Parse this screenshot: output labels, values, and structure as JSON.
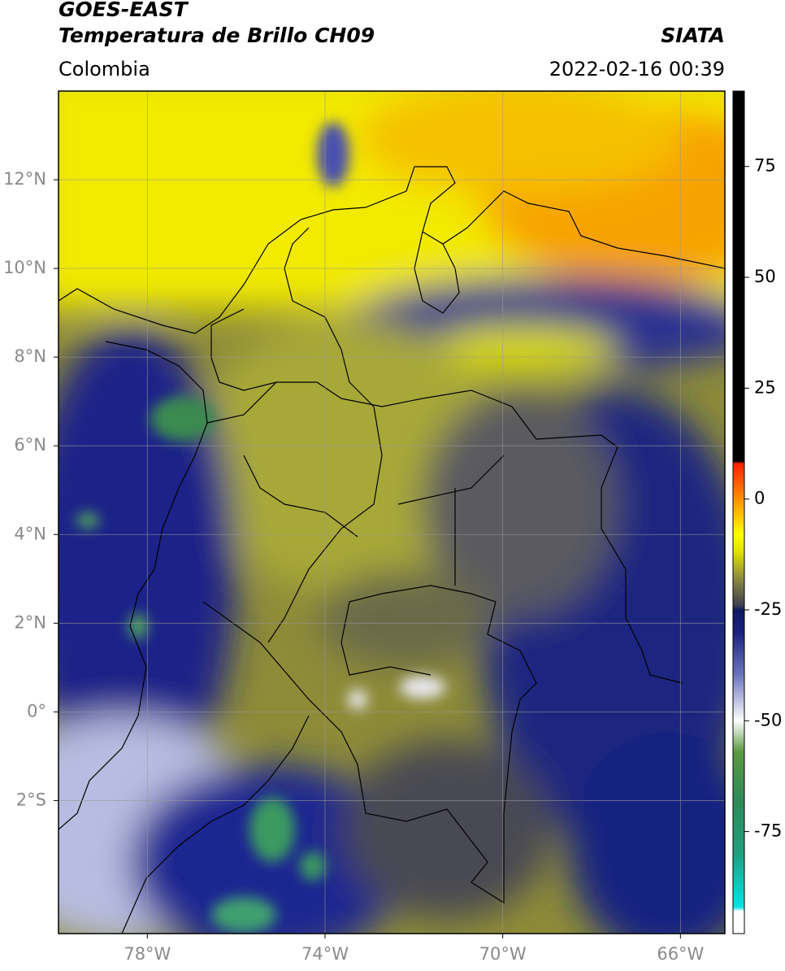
{
  "header": {
    "title": "GOES-EAST",
    "subtitle": "Temperatura de Brillo CH09",
    "source": "SIATA",
    "region": "Colombia",
    "datetime": "2022-02-16 00:39"
  },
  "map": {
    "xlim": [
      -80,
      -65
    ],
    "ylim": [
      -5,
      14
    ],
    "xticks": [
      {
        "value": -78,
        "label": "78°W"
      },
      {
        "value": -74,
        "label": "74°W"
      },
      {
        "value": -70,
        "label": "70°W"
      },
      {
        "value": -66,
        "label": "66°W"
      }
    ],
    "yticks": [
      {
        "value": -2,
        "label": "2°S"
      },
      {
        "value": 0,
        "label": "0°"
      },
      {
        "value": 2,
        "label": "2°N"
      },
      {
        "value": 4,
        "label": "4°N"
      },
      {
        "value": 6,
        "label": "6°N"
      },
      {
        "value": 8,
        "label": "8°N"
      },
      {
        "value": 10,
        "label": "10°N"
      },
      {
        "value": 12,
        "label": "12°N"
      }
    ],
    "grid": true
  },
  "colorbar": {
    "lim": [
      -98,
      92
    ],
    "ticks": [
      -75,
      -50,
      -25,
      0,
      25,
      50,
      75
    ],
    "stops": [
      {
        "value": -98,
        "color": "#ffffff"
      },
      {
        "value": -93,
        "color": "#ffffff"
      },
      {
        "value": -92,
        "color": "#00e5e5"
      },
      {
        "value": -80,
        "color": "#20a080"
      },
      {
        "value": -68,
        "color": "#2e8b57"
      },
      {
        "value": -57,
        "color": "#5a9a40"
      },
      {
        "value": -50,
        "color": "#ffffff"
      },
      {
        "value": -40,
        "color": "#7078c0"
      },
      {
        "value": -30,
        "color": "#1a2080"
      },
      {
        "value": -25,
        "color": "#101860"
      },
      {
        "value": -24,
        "color": "#404050"
      },
      {
        "value": -18,
        "color": "#8a8a40"
      },
      {
        "value": -12,
        "color": "#e0e000"
      },
      {
        "value": -8,
        "color": "#ffff00"
      },
      {
        "value": 0,
        "color": "#ff9000"
      },
      {
        "value": 8,
        "color": "#ff2000"
      },
      {
        "value": 8.5,
        "color": "#000000"
      },
      {
        "value": 92,
        "color": "#000000"
      }
    ]
  }
}
